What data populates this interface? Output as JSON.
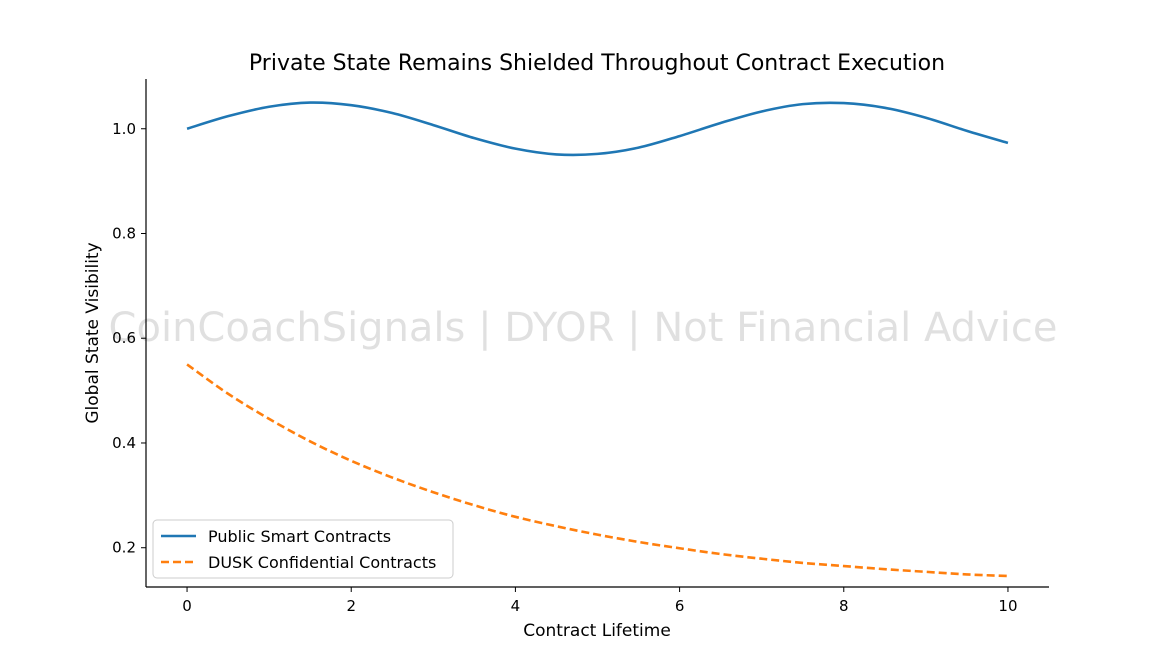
{
  "chart_data": {
    "type": "line",
    "title": "Private State Remains Shielded Throughout Contract Execution",
    "xlabel": "Contract Lifetime",
    "ylabel": "Global State Visibility",
    "xlim": [
      -0.5,
      10.5
    ],
    "ylim": [
      0.125,
      1.095
    ],
    "xticks": [
      0,
      2,
      4,
      6,
      8,
      10
    ],
    "xtick_labels": [
      "0",
      "2",
      "4",
      "6",
      "8",
      "10"
    ],
    "yticks": [
      0.2,
      0.4,
      0.6,
      0.8,
      1.0
    ],
    "ytick_labels": [
      "0.2",
      "0.4",
      "0.6",
      "0.8",
      "1.0"
    ],
    "grid": false,
    "legend_position": "lower-left",
    "watermark": "CoinCoachSignals | DYOR | Not Financial Advice",
    "series": [
      {
        "name": "Public Smart Contracts",
        "color": "#1f77b4",
        "style": "solid",
        "x": [
          0,
          0.5,
          1,
          1.5,
          2,
          2.5,
          3,
          3.5,
          4,
          4.5,
          5,
          5.5,
          6,
          6.5,
          7,
          7.5,
          8,
          8.5,
          9,
          9.5,
          10
        ],
        "y": [
          1.0,
          1.024,
          1.042,
          1.05,
          1.045,
          1.03,
          1.007,
          0.982,
          0.962,
          0.951,
          0.952,
          0.964,
          0.986,
          1.011,
          1.033,
          1.047,
          1.049,
          1.04,
          1.021,
          0.996,
          0.973
        ]
      },
      {
        "name": "DUSK Confidential Contracts",
        "color": "#ff7f0e",
        "style": "dashed",
        "x": [
          0,
          0.5,
          1,
          1.5,
          2,
          2.5,
          3,
          3.5,
          4,
          4.5,
          5,
          5.5,
          6,
          6.5,
          7,
          7.5,
          8,
          8.5,
          9,
          9.5,
          10
        ],
        "y": [
          0.55,
          0.494,
          0.446,
          0.403,
          0.366,
          0.334,
          0.306,
          0.281,
          0.259,
          0.241,
          0.225,
          0.211,
          0.199,
          0.188,
          0.179,
          0.171,
          0.165,
          0.159,
          0.154,
          0.149,
          0.146
        ]
      }
    ]
  }
}
